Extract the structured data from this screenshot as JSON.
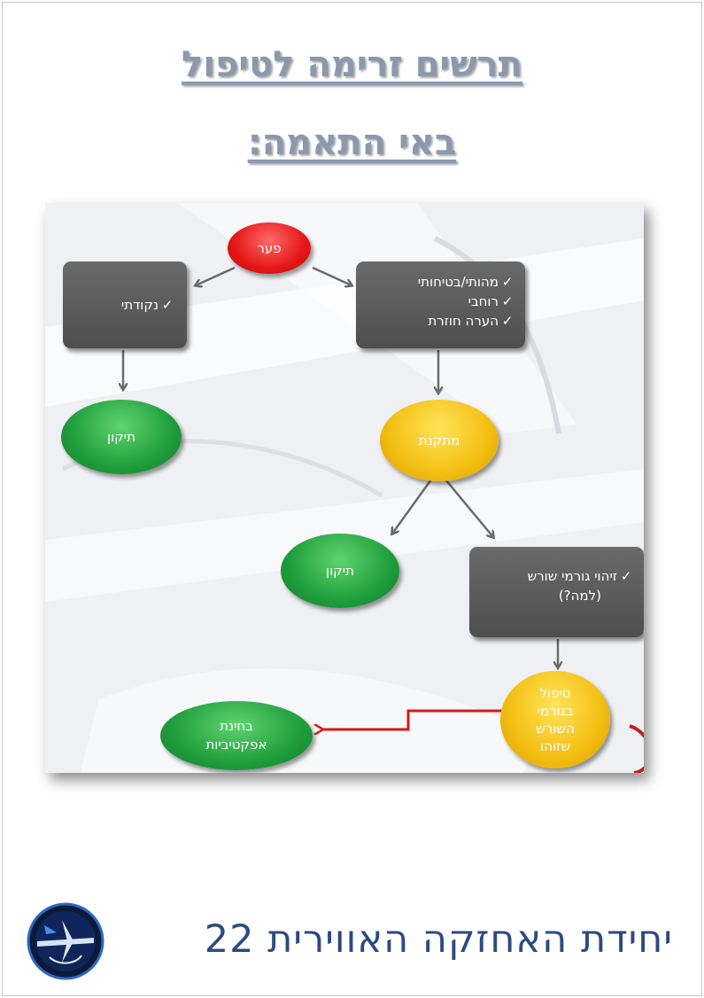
{
  "title": {
    "line1": "תרשים זרימה לטיפול",
    "line2": "באי התאמה:"
  },
  "diagram": {
    "gap": "פער",
    "point": {
      "items": [
        "נקודתי"
      ]
    },
    "systemic": {
      "items": [
        "מהותי/בטיחותי",
        "רוחבי",
        "הערה חוזרת"
      ]
    },
    "fix1": "תיקון",
    "corrective": "מתקנת",
    "fix2": "תיקון",
    "root_cause": {
      "line1": "זיהוי גורמי שורש",
      "line2": "(למה?)"
    },
    "treatment": {
      "lines": [
        "טיפול",
        "בגורמי",
        "השורש",
        "שזוהו"
      ]
    },
    "effectiveness": {
      "line1": "בחינת",
      "line2": "אפקטיביות"
    },
    "check_symbol": "✓"
  },
  "footer": {
    "unit_name": "יחידת האחזקה האווירית 22"
  },
  "colors": {
    "title": "#8a99ad",
    "green": "#1f9e3c",
    "yellow": "#f3be12",
    "red": "#e51717",
    "box": "#5a5a5a",
    "arrow": "#6b6b6b",
    "red_arrow": "#d61a1a",
    "footer": "#2c4a82"
  }
}
